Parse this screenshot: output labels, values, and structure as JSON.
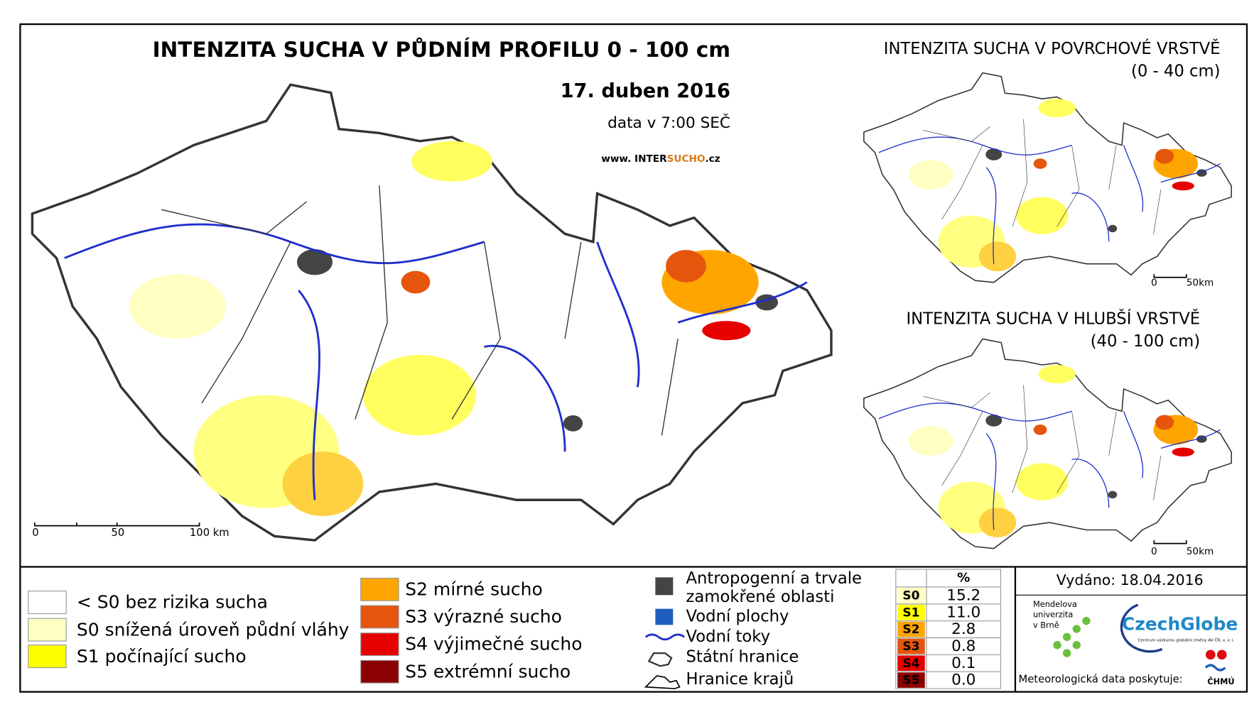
{
  "header": {
    "title": "INTENZITA SUCHA V PŮDNÍM PROFILU 0 - 100 cm",
    "date": "17. duben 2016",
    "time": "data v 7:00 SEČ",
    "url": [
      "www. INTER",
      "SUCHO",
      ".cz"
    ]
  },
  "main_scale": [
    "0",
    "50",
    "100 km"
  ],
  "inset_top": {
    "title": "INTENZITA SUCHA V POVRCHOVÉ VRSTVĚ",
    "subtitle": "(0 - 40 cm)",
    "scale": [
      "0",
      "50km"
    ]
  },
  "inset_bottom": {
    "title": "INTENZITA SUCHA V HLUBŠÍ VRSTVĚ",
    "subtitle": "(40 - 100 cm)",
    "scale": [
      "0",
      "50km"
    ]
  },
  "legend_drought": [
    {
      "label": "< S0 bez rizika sucha",
      "color": "#ffffff"
    },
    {
      "label": "S0 snížená úroveň půdní vláhy",
      "color": "#ffffc4"
    },
    {
      "label": "S1 počínající sucho",
      "color": "#ffff00"
    },
    {
      "label": "S2 mírné sucho",
      "color": "#ffa500"
    },
    {
      "label": "S3 výrazné sucho",
      "color": "#e5560c"
    },
    {
      "label": "S4 výjimečné sucho",
      "color": "#e60000"
    },
    {
      "label": "S5 extrémní sucho",
      "color": "#8b0000"
    }
  ],
  "legend_map": [
    "Antropogenní a trvale",
    "zamokřené oblasti",
    "Vodní plochy",
    "Vodní toky",
    "Státní hranice",
    "Hranice krajů"
  ],
  "table": {
    "header": "%",
    "rows": [
      [
        "S0",
        "15.2"
      ],
      [
        "S1",
        "11.0"
      ],
      [
        "S2",
        "2.8"
      ],
      [
        "S3",
        "0.8"
      ],
      [
        "S4",
        "0.1"
      ],
      [
        "S5",
        "0.0"
      ]
    ],
    "row_colors": [
      "#ffffc4",
      "#ffff00",
      "#ffa500",
      "#e5560c",
      "#e60000",
      "#8b0000"
    ]
  },
  "issued": "Vydáno: 18.04.2016",
  "logos": {
    "mendel": [
      "Mendelova",
      "univerzita",
      "v Brně"
    ],
    "czechglobe": "CzechGlobe",
    "czechglobe_sub": "Centrum výzkumu globální změny AV ČR, v. v. i.",
    "provider": "Meteorologická data poskytuje:",
    "chmu": "ČHMÚ"
  }
}
